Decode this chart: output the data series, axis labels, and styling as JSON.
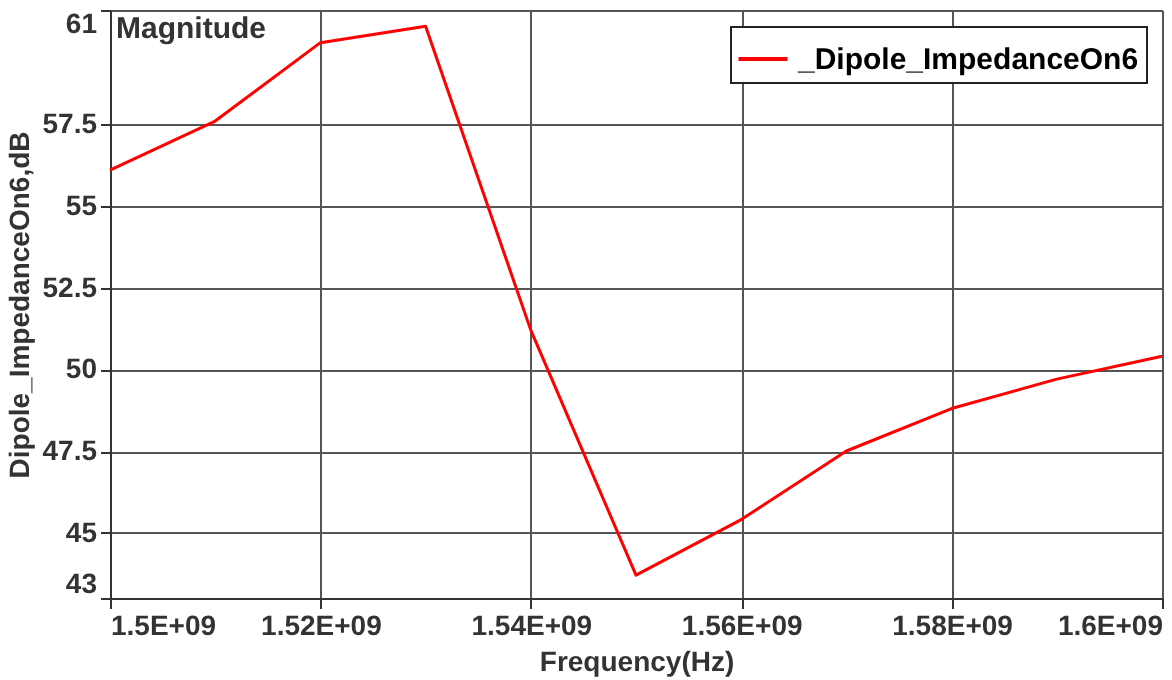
{
  "chart_data": {
    "type": "line",
    "xlabel": "Frequency(Hz)",
    "ylabel": "Dipole_ImpedanceOn6,dB",
    "annotations": [
      "Magnitude"
    ],
    "x": [
      1500000000,
      1510000000,
      1520000000,
      1530000000,
      1540000000,
      1550000000,
      1560000000,
      1570000000,
      1580000000,
      1590000000,
      1600000000
    ],
    "series": [
      {
        "name": "_Dipole_ImpedanceOn6",
        "color": "#ff0000",
        "values": [
          56.1,
          57.6,
          60.0,
          60.5,
          51.2,
          43.7,
          45.4,
          47.5,
          48.8,
          49.7,
          50.4
        ]
      }
    ],
    "xlim": [
      1500000000,
      1600000000
    ],
    "xticks": [
      {
        "value": 1500000000,
        "label": "1.5E+09"
      },
      {
        "value": 1520000000,
        "label": "1.52E+09"
      },
      {
        "value": 1540000000,
        "label": "1.54E+09"
      },
      {
        "value": 1560000000,
        "label": "1.56E+09"
      },
      {
        "value": 1580000000,
        "label": "1.58E+09"
      },
      {
        "value": 1600000000,
        "label": "1.6E+09"
      }
    ],
    "ylim": [
      43,
      61
    ],
    "yticks": [
      43,
      45,
      47.5,
      50,
      52.5,
      55,
      57.5,
      61
    ],
    "grid": true,
    "legend": "top right",
    "marker": "none",
    "line_style": "solid"
  }
}
